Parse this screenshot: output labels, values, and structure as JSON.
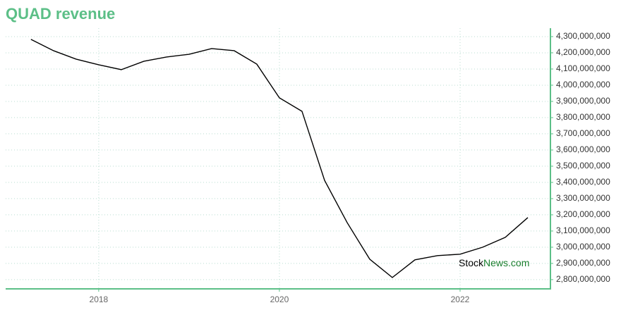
{
  "chart_data": {
    "type": "line",
    "title": "QUAD revenue",
    "watermark": {
      "prefix": "Stock",
      "suffix": "News.com"
    },
    "x": [
      2017.25,
      2017.5,
      2017.75,
      2018,
      2018.25,
      2018.5,
      2018.75,
      2019,
      2019.25,
      2019.5,
      2019.75,
      2020,
      2020.25,
      2020.5,
      2020.75,
      2021,
      2021.25,
      2021.5,
      2021.75,
      2022,
      2022.25,
      2022.5,
      2022.75
    ],
    "series": [
      {
        "name": "Revenue",
        "color": "#000000",
        "values": [
          4283000000,
          4213000000,
          4161000000,
          4126000000,
          4096000000,
          4148000000,
          4174000000,
          4191000000,
          4226000000,
          4213000000,
          4130000000,
          3922000000,
          3839000000,
          3413000000,
          3152000000,
          2926000000,
          2813000000,
          2922000000,
          2948000000,
          2957000000,
          3000000000,
          3061000000,
          3183000000
        ]
      }
    ],
    "xlim": [
      2016.97,
      2023
    ],
    "xticks": [
      2018,
      2020,
      2022
    ],
    "ylim": [
      2743000000,
      4352000000
    ],
    "yticks": [
      {
        "value": 2800000000,
        "label": "2,800,000,000"
      },
      {
        "value": 2900000000,
        "label": "2,900,000,000"
      },
      {
        "value": 3000000000,
        "label": "3,000,000,000"
      },
      {
        "value": 3100000000,
        "label": "3,100,000,000"
      },
      {
        "value": 3200000000,
        "label": "3,200,000,000"
      },
      {
        "value": 3300000000,
        "label": "3,300,000,000"
      },
      {
        "value": 3400000000,
        "label": "3,400,000,000"
      },
      {
        "value": 3500000000,
        "label": "3,500,000,000"
      },
      {
        "value": 3600000000,
        "label": "3,600,000,000"
      },
      {
        "value": 3700000000,
        "label": "3,700,000,000"
      },
      {
        "value": 3800000000,
        "label": "3,800,000,000"
      },
      {
        "value": 3900000000,
        "label": "3,900,000,000"
      },
      {
        "value": 4000000000,
        "label": "4,000,000,000"
      },
      {
        "value": 4100000000,
        "label": "4,100,000,000"
      },
      {
        "value": 4200000000,
        "label": "4,200,000,000"
      },
      {
        "value": 4300000000,
        "label": "4,300,000,000"
      }
    ],
    "grid": true,
    "axis_color": "#5cbf87"
  }
}
